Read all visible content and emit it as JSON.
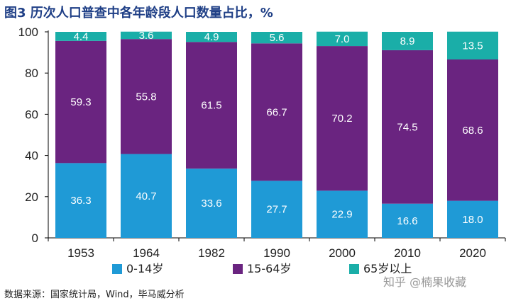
{
  "title": "图3 历次人口普查中各年龄段人口数量占比，%",
  "source": "数据来源：国家统计局，Wind，毕马威分析",
  "watermark": "知乎 @楠果收藏",
  "colors": {
    "s0": "#1f9ad6",
    "s1": "#6a2480",
    "s2": "#1aaea8",
    "axis": "#000000"
  },
  "chart_data": {
    "type": "bar",
    "stacked": true,
    "title": "图3 历次人口普查中各年龄段人口数量占比，%",
    "categories": [
      "1953",
      "1964",
      "1982",
      "1990",
      "2000",
      "2010",
      "2020"
    ],
    "series": [
      {
        "name": "0-14岁",
        "values": [
          36.3,
          40.7,
          33.6,
          27.7,
          22.9,
          16.6,
          18.0
        ],
        "color": "#1f9ad6"
      },
      {
        "name": "15-64岁",
        "values": [
          59.3,
          55.8,
          61.5,
          66.7,
          70.2,
          74.5,
          68.6
        ],
        "color": "#6a2480"
      },
      {
        "name": "65岁以上",
        "values": [
          4.4,
          3.6,
          4.9,
          5.6,
          7.0,
          8.9,
          13.5
        ],
        "color": "#1aaea8"
      }
    ],
    "ylim": [
      0,
      100
    ],
    "yticks": [
      0,
      20,
      40,
      60,
      80,
      100
    ],
    "grid": false,
    "legend": "bottom"
  }
}
